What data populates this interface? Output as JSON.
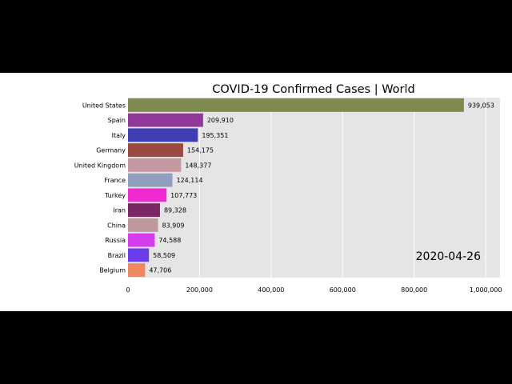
{
  "chart_data": {
    "type": "bar",
    "orientation": "horizontal",
    "title": "COVID-19 Confirmed Cases | World",
    "date": "2020-04-26",
    "xlabel": "",
    "ylabel": "",
    "xlim": [
      0,
      1040000
    ],
    "grid": true,
    "categories": [
      "United States",
      "Spain",
      "Italy",
      "Germany",
      "United Kingdom",
      "France",
      "Turkey",
      "Iran",
      "China",
      "Russia",
      "Brazil",
      "Belgium"
    ],
    "values": [
      939053,
      209910,
      195351,
      154175,
      148377,
      124114,
      107773,
      89328,
      83909,
      74588,
      58509,
      47706
    ],
    "value_labels": [
      "939,053",
      "209,910",
      "195,351",
      "154,175",
      "148,377",
      "124,114",
      "107,773",
      "89,328",
      "83,909",
      "74,588",
      "58,509",
      "47,706"
    ],
    "colors": [
      "#7e8a4f",
      "#8f3a9a",
      "#3f3eb2",
      "#9c4a40",
      "#c3989f",
      "#8e9ebe",
      "#f02ad0",
      "#7b2764",
      "#c0979c",
      "#d63cee",
      "#6b3cea",
      "#ee8660"
    ],
    "x_ticks": [
      {
        "value": 0,
        "label": "0"
      },
      {
        "value": 200000,
        "label": "200,000"
      },
      {
        "value": 400000,
        "label": "400,000"
      },
      {
        "value": 600000,
        "label": "600,000"
      },
      {
        "value": 800000,
        "label": "800,000"
      },
      {
        "value": 1000000,
        "label": "1,000,000"
      }
    ]
  }
}
